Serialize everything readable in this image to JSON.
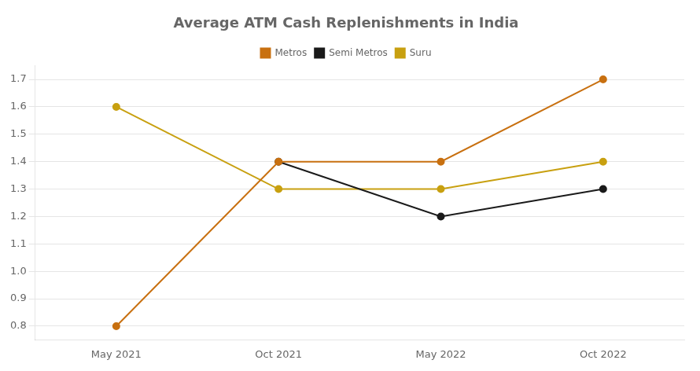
{
  "chart_data": {
    "type": "line",
    "title": "Average ATM Cash Replenishments in India",
    "categories": [
      "May 2021",
      "Oct 2021",
      "May 2022",
      "Oct 2022"
    ],
    "series": [
      {
        "name": "Metros",
        "color": "#C87010",
        "values": [
          0.8,
          1.4,
          1.4,
          1.7
        ]
      },
      {
        "name": "Semi Metros",
        "color": "#1a1a1a",
        "values": [
          null,
          1.4,
          1.2,
          1.3
        ]
      },
      {
        "name": "Suru",
        "color": "#C8A010",
        "values": [
          1.6,
          1.3,
          1.3,
          1.4
        ]
      }
    ],
    "ylim": [
      0.75,
      1.75
    ],
    "yticks": [
      0.8,
      0.9,
      {
        "value": 1,
        "label": "1.0"
      },
      1.1,
      1.2,
      1.3,
      1.4,
      1.5,
      1.6,
      1.7
    ],
    "grid": true,
    "legend": "top",
    "marker": "circle"
  }
}
